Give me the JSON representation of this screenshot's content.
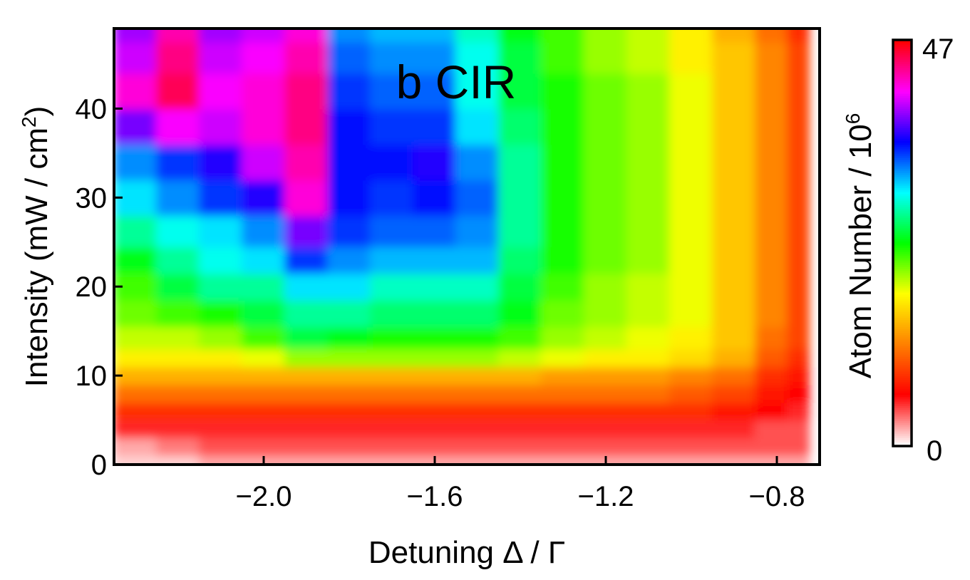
{
  "chart_data": {
    "type": "heatmap",
    "title": "b CIR",
    "xlabel": "Detuning Δ / Γ",
    "ylabel": "Intensity (mW / cm",
    "ylabel_sup": "2",
    "ylabel_close": ")",
    "xlim": [
      -2.35,
      -0.7
    ],
    "ylim": [
      0,
      49
    ],
    "xticks": [
      -2.0,
      -1.6,
      -1.2,
      -0.8
    ],
    "xtick_labels": [
      "−2.0",
      "−1.6",
      "−1.2",
      "−0.8"
    ],
    "yticks": [
      0,
      10,
      20,
      30,
      40
    ],
    "ytick_labels": [
      "0",
      "10",
      "20",
      "30",
      "40"
    ],
    "x": [
      -2.3,
      -2.2,
      -2.1,
      -2.0,
      -1.9,
      -1.8,
      -1.7,
      -1.6,
      -1.5,
      -1.4,
      -1.3,
      -1.2,
      -1.1,
      -1.0,
      -0.9,
      -0.8,
      -0.75
    ],
    "y": [
      0,
      2,
      4,
      6,
      8,
      10,
      12,
      14,
      17,
      20,
      23,
      26,
      30,
      34,
      38,
      42,
      46,
      49
    ],
    "z": [
      [
        1,
        1,
        2,
        2,
        2,
        2,
        2,
        2,
        2,
        2,
        2,
        2,
        2,
        2,
        2,
        2,
        2
      ],
      [
        2,
        3,
        4,
        4,
        4,
        4,
        4,
        4,
        4,
        4,
        4,
        4,
        4,
        4,
        4,
        4,
        4
      ],
      [
        5,
        5,
        5,
        5,
        5,
        5,
        5,
        5,
        5,
        5,
        5,
        5,
        5,
        5,
        5,
        4,
        4
      ],
      [
        8,
        8,
        8,
        8,
        8,
        8,
        8,
        8,
        8,
        8,
        8,
        8,
        8,
        8,
        7,
        6,
        5
      ],
      [
        11,
        11,
        11,
        11,
        11,
        11,
        11,
        11,
        11,
        11,
        11,
        11,
        11,
        10,
        9,
        7,
        6
      ],
      [
        14,
        14,
        14,
        14,
        14,
        14,
        14,
        14,
        14,
        14,
        13,
        13,
        13,
        12,
        11,
        8,
        7
      ],
      [
        17,
        17,
        17,
        18,
        20,
        20,
        20,
        20,
        20,
        19,
        18,
        17,
        17,
        16,
        14,
        10,
        8
      ],
      [
        19,
        19,
        20,
        22,
        25,
        24,
        23,
        23,
        23,
        22,
        20,
        19,
        18,
        17,
        15,
        11,
        9
      ],
      [
        21,
        22,
        23,
        25,
        27,
        27,
        26,
        26,
        26,
        24,
        21,
        20,
        19,
        18,
        15,
        12,
        9
      ],
      [
        22,
        25,
        27,
        27,
        30,
        30,
        28,
        28,
        28,
        25,
        22,
        20,
        19,
        18,
        15,
        12,
        9
      ],
      [
        24,
        27,
        29,
        30,
        34,
        32,
        31,
        31,
        31,
        26,
        23,
        21,
        20,
        18,
        15,
        12,
        9
      ],
      [
        27,
        29,
        30,
        32,
        38,
        34,
        33,
        33,
        32,
        27,
        23,
        21,
        20,
        18,
        15,
        12,
        9
      ],
      [
        30,
        32,
        34,
        36,
        42,
        35,
        34,
        35,
        33,
        27,
        23,
        21,
        20,
        18,
        15,
        12,
        9
      ],
      [
        32,
        34,
        36,
        40,
        43,
        35,
        35,
        36,
        32,
        27,
        23,
        21,
        20,
        18,
        15,
        12,
        9
      ],
      [
        38,
        41,
        40,
        42,
        44,
        35,
        34,
        34,
        30,
        26,
        23,
        21,
        20,
        18,
        15,
        12,
        9
      ],
      [
        42,
        45,
        41,
        42,
        44,
        34,
        33,
        33,
        29,
        25,
        23,
        21,
        20,
        18,
        15,
        12,
        9
      ],
      [
        40,
        44,
        40,
        41,
        43,
        33,
        32,
        32,
        29,
        25,
        22,
        20,
        19,
        17,
        15,
        12,
        9
      ],
      [
        39,
        43,
        39,
        40,
        42,
        32,
        31,
        31,
        28,
        24,
        22,
        20,
        19,
        17,
        14,
        11,
        8
      ]
    ],
    "zlim": [
      0,
      47
    ],
    "colorbar": {
      "label": "Atom Number / 10",
      "label_sup": "6",
      "min_label": "0",
      "max_label": "47"
    },
    "colormap": [
      "#ffffff",
      "#ff0000",
      "#ff8000",
      "#ffff00",
      "#00ff00",
      "#00ffff",
      "#0000ff",
      "#ff00ff",
      "#ff0000"
    ]
  }
}
